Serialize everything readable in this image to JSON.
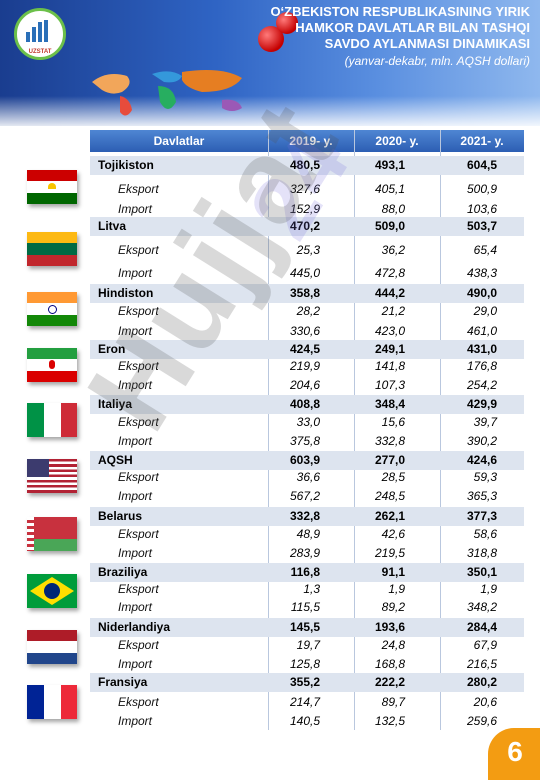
{
  "header": {
    "logo_text": "UZSTAT",
    "title_line1": "O‘ZBEKISTON RESPUBLIKASINING YIRIK",
    "title_line2": "HAMKOR DAVLATLAR BILAN TASHQI",
    "title_line3": "SAVDO AYLANMASI DINAMIKASI",
    "subtitle": "(yanvar-dekabr, mln. AQSH dollari)"
  },
  "table": {
    "columns": [
      "Davlatlar",
      "2019- y.",
      "2020- y.",
      "2021- y."
    ],
    "countries": [
      {
        "name": "Tojikiston",
        "total": [
          "480,5",
          "493,1",
          "604,5"
        ],
        "eksport": [
          "327,6",
          "405,1",
          "500,9"
        ],
        "import": [
          "152,9",
          "88,0",
          "103,6"
        ]
      },
      {
        "name": "Litva",
        "total": [
          "470,2",
          "509,0",
          "503,7"
        ],
        "eksport": [
          "25,3",
          "36,2",
          "65,4"
        ],
        "import": [
          "445,0",
          "472,8",
          "438,3"
        ]
      },
      {
        "name": "Hindiston",
        "total": [
          "358,8",
          "444,2",
          "490,0"
        ],
        "eksport": [
          "28,2",
          "21,2",
          "29,0"
        ],
        "import": [
          "330,6",
          "423,0",
          "461,0"
        ]
      },
      {
        "name": "Eron",
        "total": [
          "424,5",
          "249,1",
          "431,0"
        ],
        "eksport": [
          "219,9",
          "141,8",
          "176,8"
        ],
        "import": [
          "204,6",
          "107,3",
          "254,2"
        ]
      },
      {
        "name": "Italiya",
        "total": [
          "408,8",
          "348,4",
          "429,9"
        ],
        "eksport": [
          "33,0",
          "15,6",
          "39,7"
        ],
        "import": [
          "375,8",
          "332,8",
          "390,2"
        ]
      },
      {
        "name": "AQSH",
        "total": [
          "603,9",
          "277,0",
          "424,6"
        ],
        "eksport": [
          "36,6",
          "28,5",
          "59,3"
        ],
        "import": [
          "567,2",
          "248,5",
          "365,3"
        ]
      },
      {
        "name": "Belarus",
        "total": [
          "332,8",
          "262,1",
          "377,3"
        ],
        "eksport": [
          "48,9",
          "42,6",
          "58,6"
        ],
        "import": [
          "283,9",
          "219,5",
          "318,8"
        ]
      },
      {
        "name": "Braziliya",
        "total": [
          "116,8",
          "91,1",
          "350,1"
        ],
        "eksport": [
          "1,3",
          "1,9",
          "1,9"
        ],
        "import": [
          "115,5",
          "89,2",
          "348,2"
        ]
      },
      {
        "name": "Niderlandiya",
        "total": [
          "145,5",
          "193,6",
          "284,4"
        ],
        "eksport": [
          "19,7",
          "24,8",
          "67,9"
        ],
        "import": [
          "125,8",
          "168,8",
          "216,5"
        ]
      },
      {
        "name": "Fransiya",
        "total": [
          "355,2",
          "222,2",
          "280,2"
        ],
        "eksport": [
          "214,7",
          "89,7",
          "20,6"
        ],
        "import": [
          "140,5",
          "132,5",
          "259,6"
        ]
      }
    ],
    "labels": {
      "eksport": "Eksport",
      "import": "Import"
    }
  },
  "watermark": "Hujjat",
  "watermark2": "24",
  "page_number": "6",
  "colors": {
    "header_blue": "#2f64c4",
    "table_head": "#2c5eb3",
    "row_band": "#dde4ef",
    "badge": "#f39c12"
  }
}
